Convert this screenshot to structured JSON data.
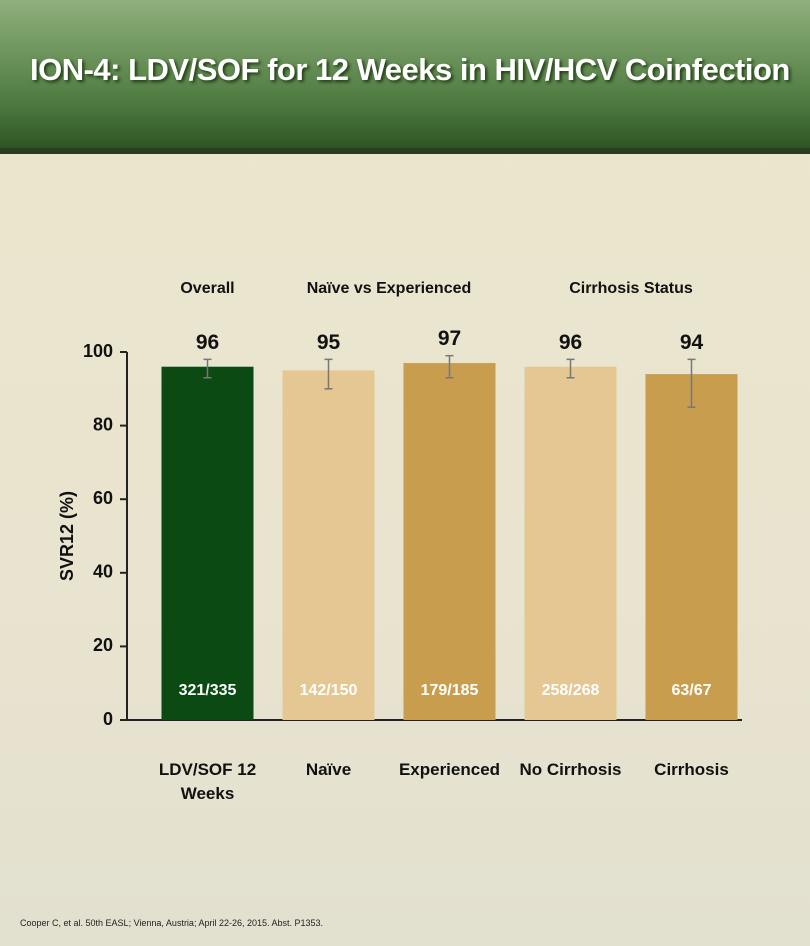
{
  "chart_data": {
    "type": "bar",
    "title": "ION-4: LDV/SOF for 12 Weeks in HIV/HCV Coinfection",
    "y_label": "SVR12 (%)",
    "groups": [
      {
        "label": "Overall",
        "span": 1
      },
      {
        "label": "Naïve vs Experienced",
        "span": 2
      },
      {
        "label": "Cirrhosis Status",
        "span": 2
      }
    ],
    "categories": [
      "LDV/SOF 12 Weeks",
      "Naïve",
      "Experienced",
      "No Cirrhosis",
      "Cirrhosis"
    ],
    "values": [
      96,
      95,
      97,
      96,
      94
    ],
    "ci_low": [
      93,
      90,
      93,
      93,
      85
    ],
    "ci_high": [
      98,
      98,
      99,
      98,
      98
    ],
    "bar_labels": [
      "321/335",
      "142/150",
      "179/185",
      "258/268",
      "63/67"
    ],
    "colors": [
      "#0c4a14",
      "#e4c792",
      "#c89e4e",
      "#e4c792",
      "#c89e4e"
    ],
    "ylim": [
      0,
      100
    ],
    "yticks": [
      0,
      20,
      40,
      60,
      80,
      100
    ],
    "grid": false,
    "footnote": "Cooper C, et al. 50th EASL; Vienna, Austria; April 22-26, 2015. Abst. P1353."
  }
}
